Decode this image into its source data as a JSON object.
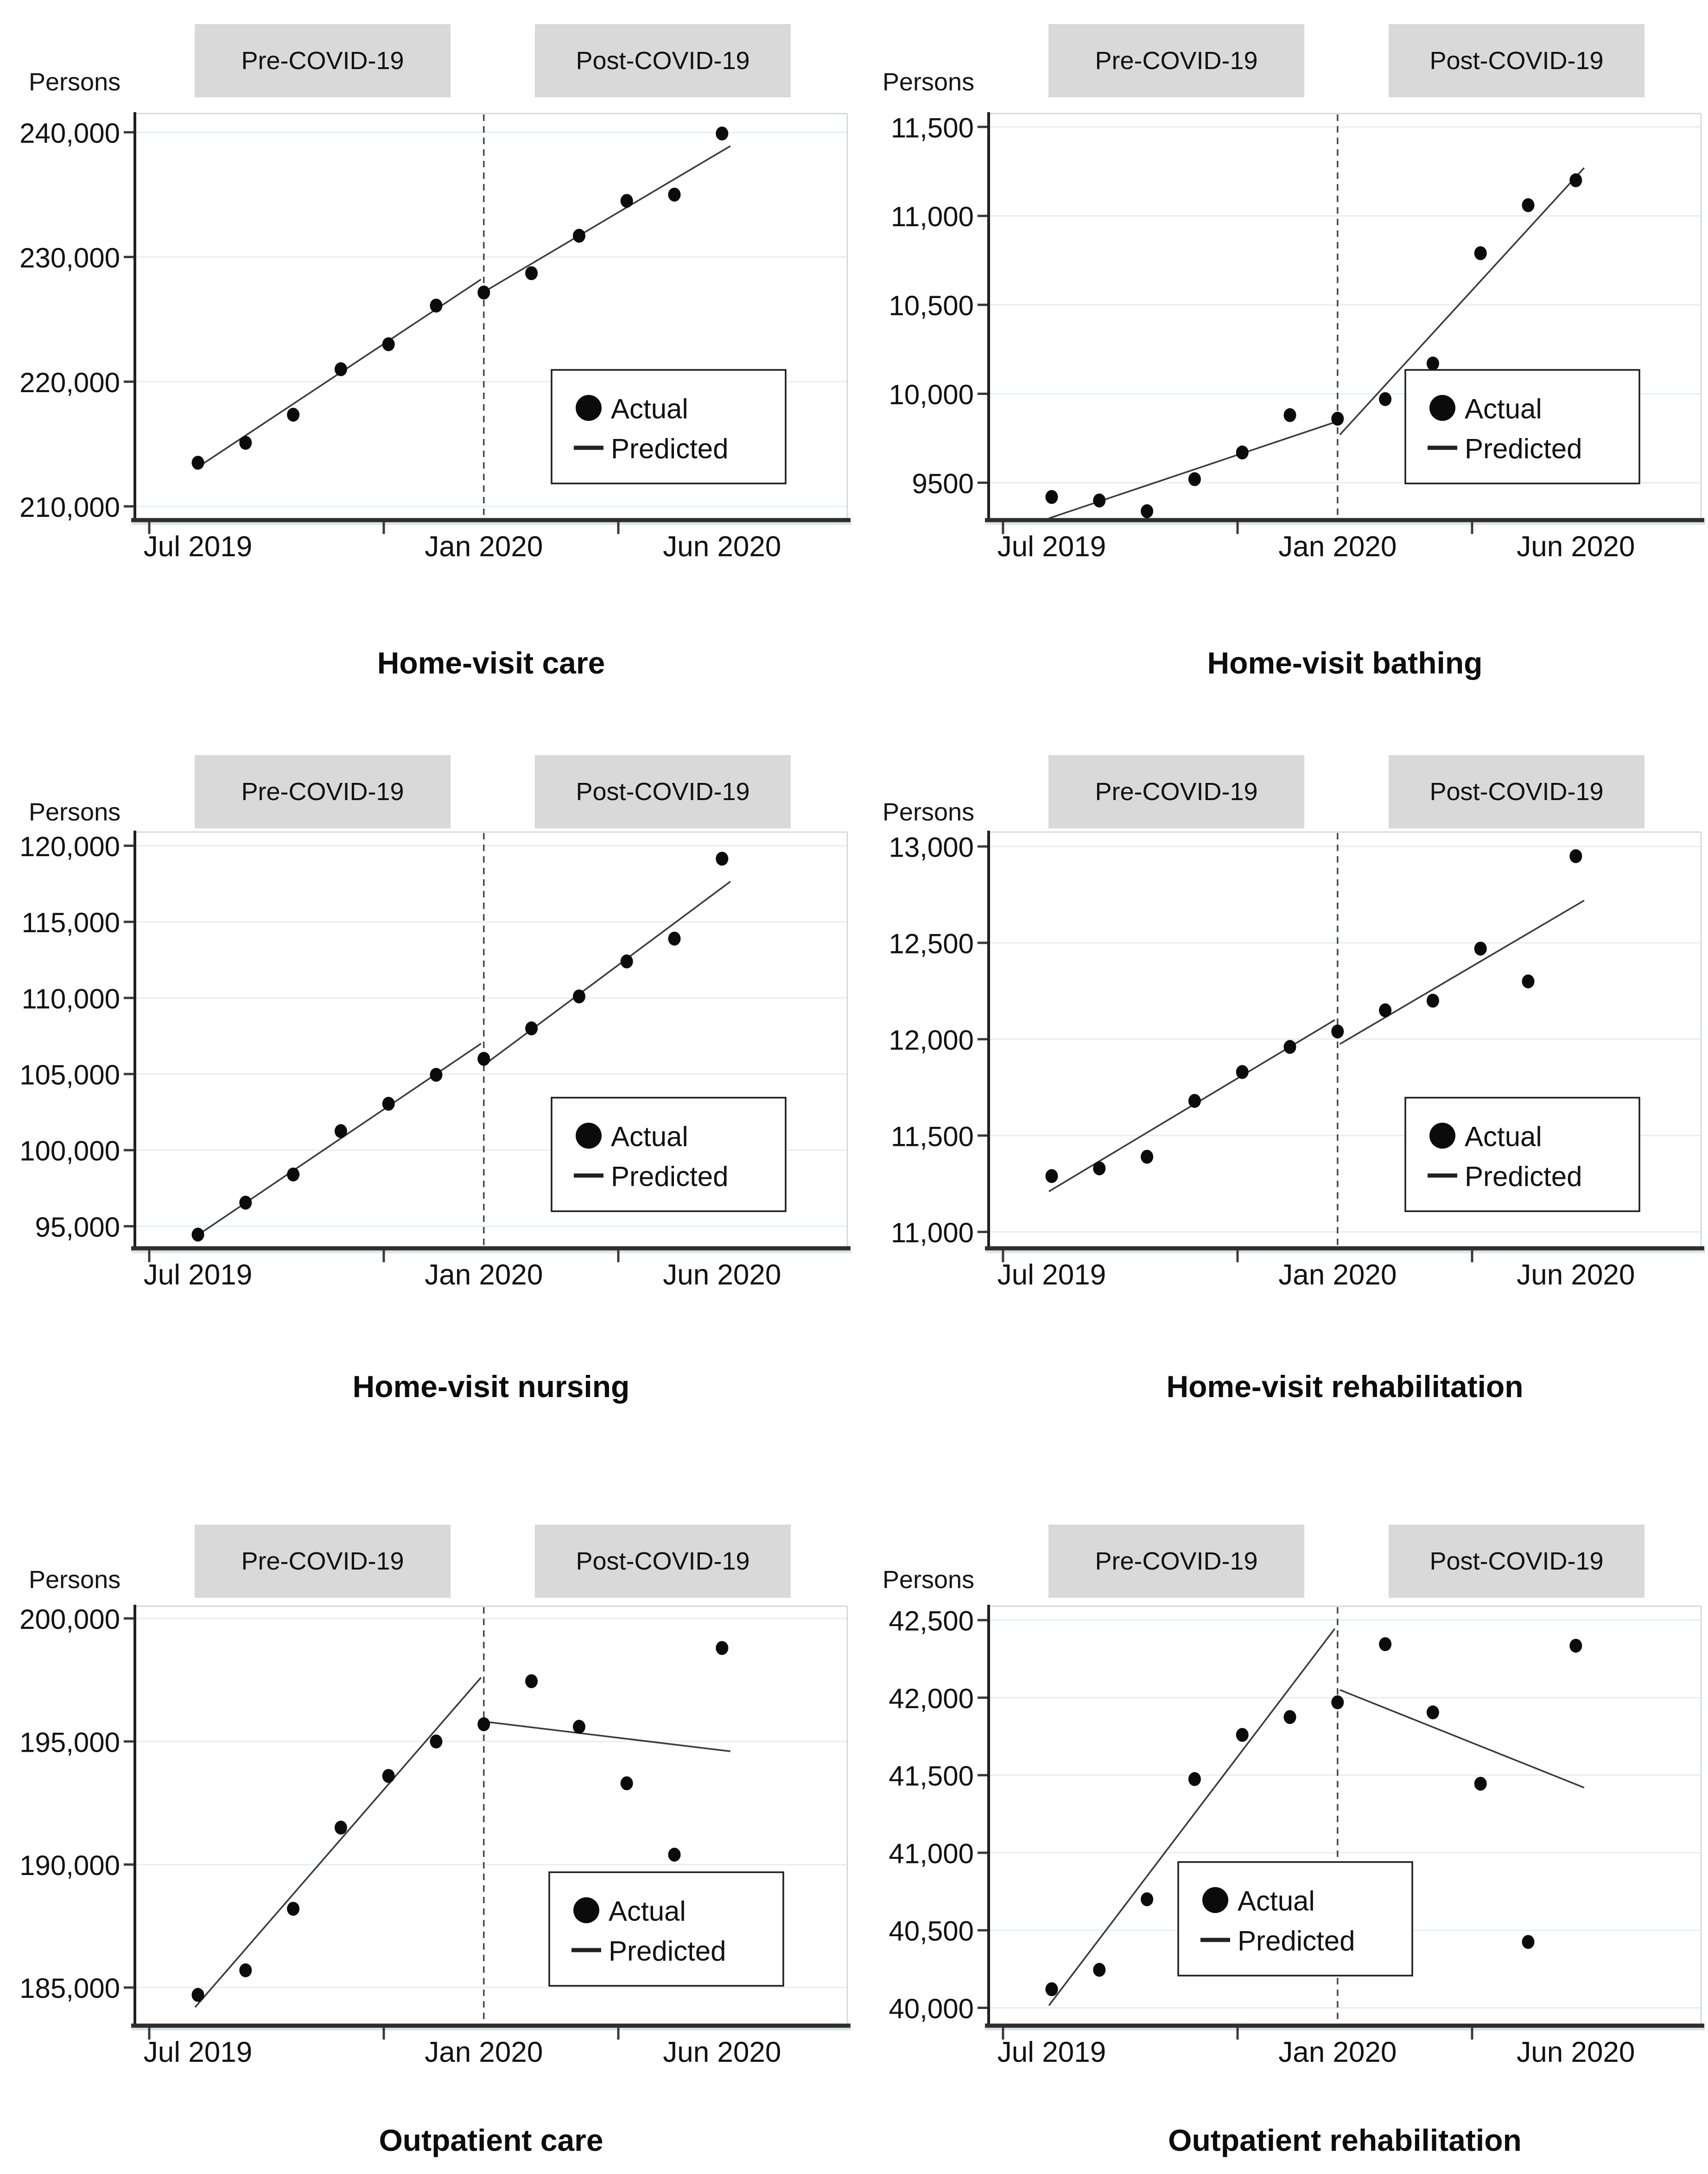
{
  "charts": [
    {
      "pre_label": "Pre-COVID-19",
      "post_label": "Post-COVID-19",
      "title": "Home-visit care",
      "legend": {
        "actual": "Actual",
        "predicted": "Predicted"
      },
      "chart_data": {
        "type": "scatter",
        "ylabel": "Persons",
        "x": [
          "Jul 2019",
          "Aug 2019",
          "Sep 2019",
          "Oct 2019",
          "Nov 2019",
          "Dec 2019",
          "Jan 2020",
          "Feb 2020",
          "Mar 2020",
          "Apr 2020",
          "May 2020",
          "Jun 2020"
        ],
        "x_tick_labels": [
          {
            "index": 0,
            "label": "Jul 2019"
          },
          {
            "index": 6,
            "label": "Jan 2020"
          },
          {
            "index": 11,
            "label": "Jun 2020"
          }
        ],
        "interruption_at_index": 6,
        "series": [
          {
            "name": "Actual",
            "kind": "scatter",
            "values": [
              213500,
              215100,
              217350,
              221000,
              223000,
              226100,
              227150,
              228700,
              231700,
              234500,
              235000,
              239900
            ]
          },
          {
            "name": "Predicted",
            "kind": "line",
            "segments": [
              {
                "from_index": 0,
                "to_index": 6,
                "from_value": 213000,
                "to_value": 228200
              },
              {
                "from_index": 6,
                "to_index": 11,
                "from_value": 227300,
                "to_value": 238900
              }
            ]
          }
        ],
        "y_ticks": [
          {
            "value": 210000,
            "label": "210,000"
          },
          {
            "value": 220000,
            "label": "220,000"
          },
          {
            "value": 230000,
            "label": "230,000"
          },
          {
            "value": 240000,
            "label": "240,000"
          }
        ],
        "ylim": [
          208900,
          241500
        ],
        "grid": true,
        "legend_position": "lower-right",
        "legend_pos": {
          "x": 1190,
          "y": 798
        }
      }
    },
    {
      "pre_label": "Pre-COVID-19",
      "post_label": "Post-COVID-19",
      "title": "Home-visit bathing",
      "legend": {
        "actual": "Actual",
        "predicted": "Predicted"
      },
      "chart_data": {
        "type": "scatter",
        "ylabel": "Persons",
        "x": [
          "Jul 2019",
          "Aug 2019",
          "Sep 2019",
          "Oct 2019",
          "Nov 2019",
          "Dec 2019",
          "Jan 2020",
          "Feb 2020",
          "Mar 2020",
          "Apr 2020",
          "May 2020",
          "Jun 2020"
        ],
        "x_tick_labels": [
          {
            "index": 0,
            "label": "Jul 2019"
          },
          {
            "index": 6,
            "label": "Jan 2020"
          },
          {
            "index": 11,
            "label": "Jun 2020"
          }
        ],
        "interruption_at_index": 6,
        "series": [
          {
            "name": "Actual",
            "kind": "scatter",
            "values": [
              9420,
              9400,
              9340,
              9520,
              9670,
              9880,
              9860,
              9970,
              10170,
              10790,
              11060,
              11200
            ]
          },
          {
            "name": "Predicted",
            "kind": "line",
            "segments": [
              {
                "from_index": 0,
                "to_index": 6,
                "from_value": 9300,
                "to_value": 9840
              },
              {
                "from_index": 6,
                "to_index": 11,
                "from_value": 9770,
                "to_value": 11270
              }
            ]
          }
        ],
        "y_ticks": [
          {
            "value": 9500,
            "label": "9500"
          },
          {
            "value": 10000,
            "label": "10,000"
          },
          {
            "value": 10500,
            "label": "10,500"
          },
          {
            "value": 11000,
            "label": "11,000"
          },
          {
            "value": 11500,
            "label": "11,500"
          }
        ],
        "ylim": [
          9290,
          11575
        ],
        "grid": true,
        "legend_position": "lower-right",
        "legend_pos": {
          "x": 1190,
          "y": 798
        }
      }
    },
    {
      "pre_label": "Pre-COVID-19",
      "post_label": "Post-COVID-19",
      "title": "Home-visit nursing",
      "legend": {
        "actual": "Actual",
        "predicted": "Predicted"
      },
      "chart_data": {
        "type": "scatter",
        "ylabel": "Persons",
        "x": [
          "Jul 2019",
          "Aug 2019",
          "Sep 2019",
          "Oct 2019",
          "Nov 2019",
          "Dec 2019",
          "Jan 2020",
          "Feb 2020",
          "Mar 2020",
          "Apr 2020",
          "May 2020",
          "Jun 2020"
        ],
        "x_tick_labels": [
          {
            "index": 0,
            "label": "Jul 2019"
          },
          {
            "index": 6,
            "label": "Jan 2020"
          },
          {
            "index": 11,
            "label": "Jun 2020"
          }
        ],
        "interruption_at_index": 6,
        "series": [
          {
            "name": "Actual",
            "kind": "scatter",
            "values": [
              94450,
              96550,
              98400,
              101250,
              103050,
              104950,
              106000,
              108000,
              110100,
              112400,
              113900,
              119150
            ]
          },
          {
            "name": "Predicted",
            "kind": "line",
            "segments": [
              {
                "from_index": 0,
                "to_index": 6,
                "from_value": 94300,
                "to_value": 107000
              },
              {
                "from_index": 6,
                "to_index": 11,
                "from_value": 105700,
                "to_value": 117650
              }
            ]
          }
        ],
        "y_ticks": [
          {
            "value": 95000,
            "label": "95,000"
          },
          {
            "value": 100000,
            "label": "100,000"
          },
          {
            "value": 105000,
            "label": "105,000"
          },
          {
            "value": 110000,
            "label": "110,000"
          },
          {
            "value": 115000,
            "label": "115,000"
          },
          {
            "value": 120000,
            "label": "120,000"
          }
        ],
        "ylim": [
          93550,
          120900
        ],
        "grid": true,
        "legend_position": "lower-right",
        "legend_pos": {
          "x": 1190,
          "y": 805
        }
      }
    },
    {
      "pre_label": "Pre-COVID-19",
      "post_label": "Post-COVID-19",
      "title": "Home-visit rehabilitation",
      "legend": {
        "actual": "Actual",
        "predicted": "Predicted"
      },
      "chart_data": {
        "type": "scatter",
        "ylabel": "Persons",
        "x": [
          "Jul 2019",
          "Aug 2019",
          "Sep 2019",
          "Oct 2019",
          "Nov 2019",
          "Dec 2019",
          "Jan 2020",
          "Feb 2020",
          "Mar 2020",
          "Apr 2020",
          "May 2020",
          "Jun 2020"
        ],
        "x_tick_labels": [
          {
            "index": 0,
            "label": "Jul 2019"
          },
          {
            "index": 6,
            "label": "Jan 2020"
          },
          {
            "index": 11,
            "label": "Jun 2020"
          }
        ],
        "interruption_at_index": 6,
        "series": [
          {
            "name": "Actual",
            "kind": "scatter",
            "values": [
              11290,
              11330,
              11390,
              11680,
              11830,
              11960,
              12040,
              12150,
              12200,
              12470,
              12300,
              12950
            ]
          },
          {
            "name": "Predicted",
            "kind": "line",
            "segments": [
              {
                "from_index": 0,
                "to_index": 6,
                "from_value": 11210,
                "to_value": 12100
              },
              {
                "from_index": 6,
                "to_index": 11,
                "from_value": 11975,
                "to_value": 12720
              }
            ]
          }
        ],
        "y_ticks": [
          {
            "value": 11000,
            "label": "11,000"
          },
          {
            "value": 11500,
            "label": "11,500"
          },
          {
            "value": 12000,
            "label": "12,000"
          },
          {
            "value": 12500,
            "label": "12,500"
          },
          {
            "value": 13000,
            "label": "13,000"
          }
        ],
        "ylim": [
          10915,
          13075
        ],
        "grid": true,
        "legend_position": "lower-right",
        "legend_pos": {
          "x": 1190,
          "y": 805
        }
      }
    },
    {
      "pre_label": "Pre-COVID-19",
      "post_label": "Post-COVID-19",
      "title": "Outpatient care",
      "legend": {
        "actual": "Actual",
        "predicted": "Predicted"
      },
      "chart_data": {
        "type": "scatter",
        "ylabel": "Persons",
        "x": [
          "Jul 2019",
          "Aug 2019",
          "Sep 2019",
          "Oct 2019",
          "Nov 2019",
          "Dec 2019",
          "Jan 2020",
          "Feb 2020",
          "Mar 2020",
          "Apr 2020",
          "May 2020",
          "Jun 2020"
        ],
        "x_tick_labels": [
          {
            "index": 0,
            "label": "Jul 2019"
          },
          {
            "index": 6,
            "label": "Jan 2020"
          },
          {
            "index": 11,
            "label": "Jun 2020"
          }
        ],
        "interruption_at_index": 6,
        "series": [
          {
            "name": "Actual",
            "kind": "scatter",
            "values": [
              184700,
              185700,
              188200,
              191500,
              193600,
              195000,
              195700,
              197450,
              195600,
              193300,
              190400,
              198800
            ]
          },
          {
            "name": "Predicted",
            "kind": "line",
            "segments": [
              {
                "from_index": 0,
                "to_index": 6,
                "from_value": 184200,
                "to_value": 197600
              },
              {
                "from_index": 6,
                "to_index": 11,
                "from_value": 195800,
                "to_value": 194600
              }
            ]
          }
        ],
        "y_ticks": [
          {
            "value": 185000,
            "label": "185,000"
          },
          {
            "value": 190000,
            "label": "190,000"
          },
          {
            "value": 195000,
            "label": "195,000"
          },
          {
            "value": 200000,
            "label": "200,000"
          }
        ],
        "ylim": [
          183450,
          200500
        ],
        "grid": true,
        "legend_position": "lower-right",
        "legend_pos": {
          "x": 1185,
          "y": 912
        }
      }
    },
    {
      "pre_label": "Pre-COVID-19",
      "post_label": "Post-COVID-19",
      "title": "Outpatient rehabilitation",
      "legend": {
        "actual": "Actual",
        "predicted": "Predicted"
      },
      "chart_data": {
        "type": "scatter",
        "ylabel": "Persons",
        "x": [
          "Jul 2019",
          "Aug 2019",
          "Sep 2019",
          "Oct 2019",
          "Nov 2019",
          "Dec 2019",
          "Jan 2020",
          "Feb 2020",
          "Mar 2020",
          "Apr 2020",
          "May 2020",
          "Jun 2020"
        ],
        "x_tick_labels": [
          {
            "index": 0,
            "label": "Jul 2019"
          },
          {
            "index": 6,
            "label": "Jan 2020"
          },
          {
            "index": 11,
            "label": "Jun 2020"
          }
        ],
        "interruption_at_index": 6,
        "series": [
          {
            "name": "Actual",
            "kind": "scatter",
            "values": [
              40120,
              40245,
              40700,
              41475,
              41760,
              41875,
              41970,
              42345,
              41905,
              41445,
              40425,
              42335
            ]
          },
          {
            "name": "Predicted",
            "kind": "line",
            "segments": [
              {
                "from_index": 0,
                "to_index": 6,
                "from_value": 40015,
                "to_value": 42445
              },
              {
                "from_index": 6,
                "to_index": 11,
                "from_value": 42050,
                "to_value": 41420
              }
            ]
          }
        ],
        "y_ticks": [
          {
            "value": 40000,
            "label": "40,000"
          },
          {
            "value": 40500,
            "label": "40,500"
          },
          {
            "value": 41000,
            "label": "41,000"
          },
          {
            "value": 41500,
            "label": "41,500"
          },
          {
            "value": 42000,
            "label": "42,000"
          },
          {
            "value": 42500,
            "label": "42,500"
          }
        ],
        "ylim": [
          39885,
          42590
        ],
        "grid": true,
        "legend_position": "lower-center",
        "legend_pos": {
          "x": 700,
          "y": 890
        }
      }
    }
  ]
}
